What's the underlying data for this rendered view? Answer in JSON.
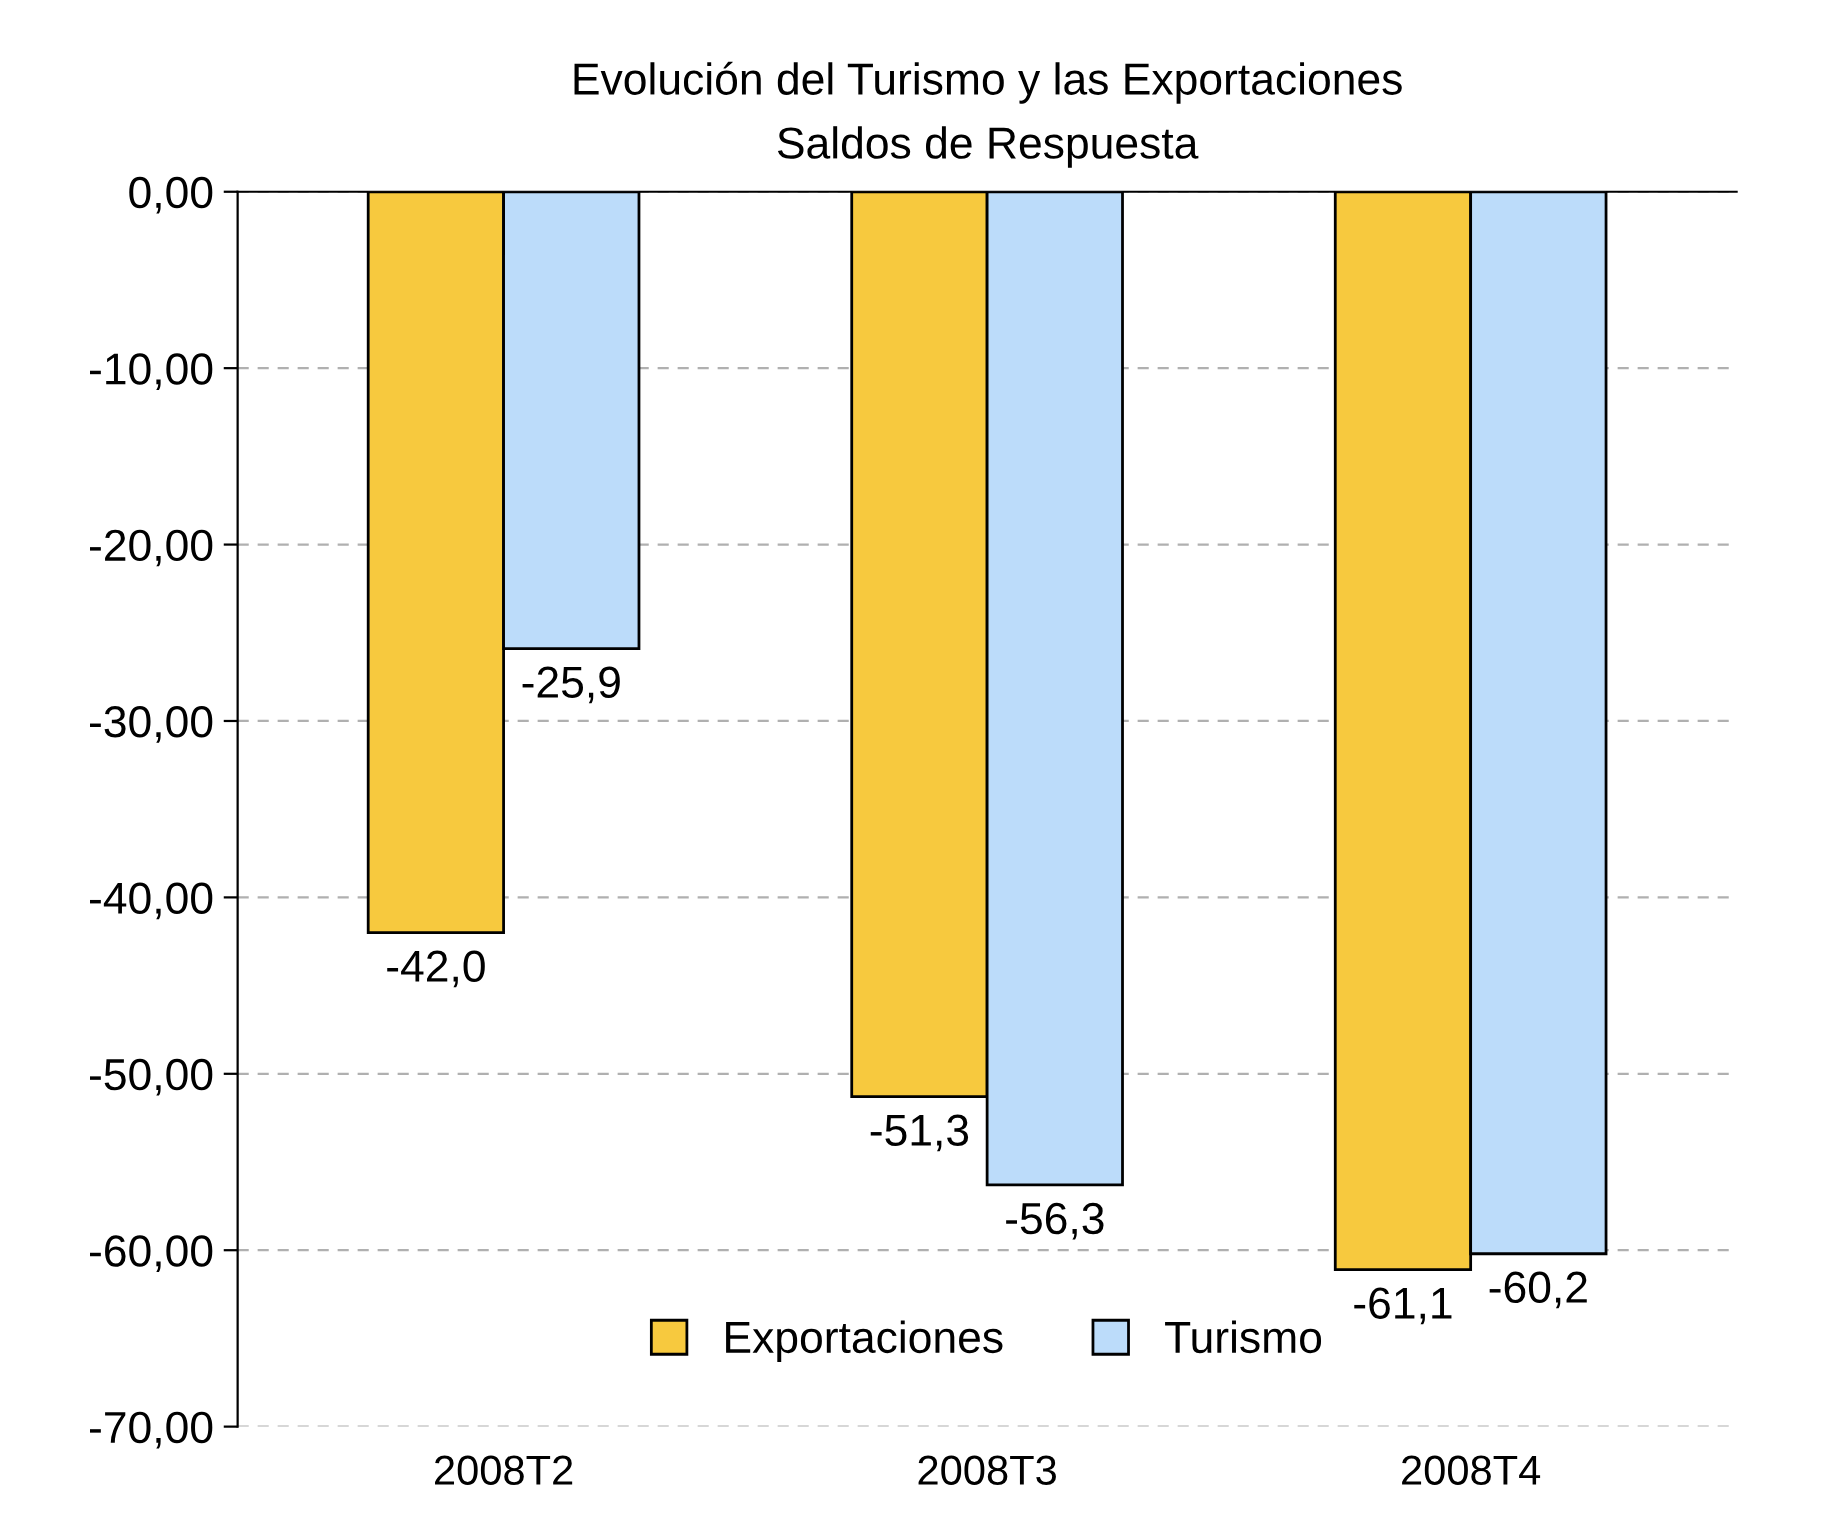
{
  "chart_data": {
    "type": "bar",
    "title": "Evolución del Turismo y las Exportaciones\nSaldos de Respuesta",
    "categories": [
      "2008T2",
      "2008T3",
      "2008T4"
    ],
    "series": [
      {
        "name": "Exportaciones",
        "color": "#f7c93e",
        "values": [
          -42.0,
          -51.3,
          -61.1
        ],
        "value_labels": [
          "-42,0",
          "-51,3",
          "-61,1"
        ]
      },
      {
        "name": "Turismo",
        "color": "#bcdcfa",
        "values": [
          -25.9,
          -56.3,
          -60.2
        ],
        "value_labels": [
          "-25,9",
          "-56,3",
          "-60,2"
        ]
      }
    ],
    "ylim": [
      -70,
      0
    ],
    "yticks": [
      {
        "value": 0,
        "label": "0,00"
      },
      {
        "value": -10,
        "label": "-10,00"
      },
      {
        "value": -20,
        "label": "-20,00"
      },
      {
        "value": -30,
        "label": "-30,00"
      },
      {
        "value": -40,
        "label": "-40,00"
      },
      {
        "value": -50,
        "label": "-50,00"
      },
      {
        "value": -60,
        "label": "-60,00"
      },
      {
        "value": -70,
        "label": "-70,00"
      }
    ],
    "grid": "y",
    "legend": "bottom"
  }
}
